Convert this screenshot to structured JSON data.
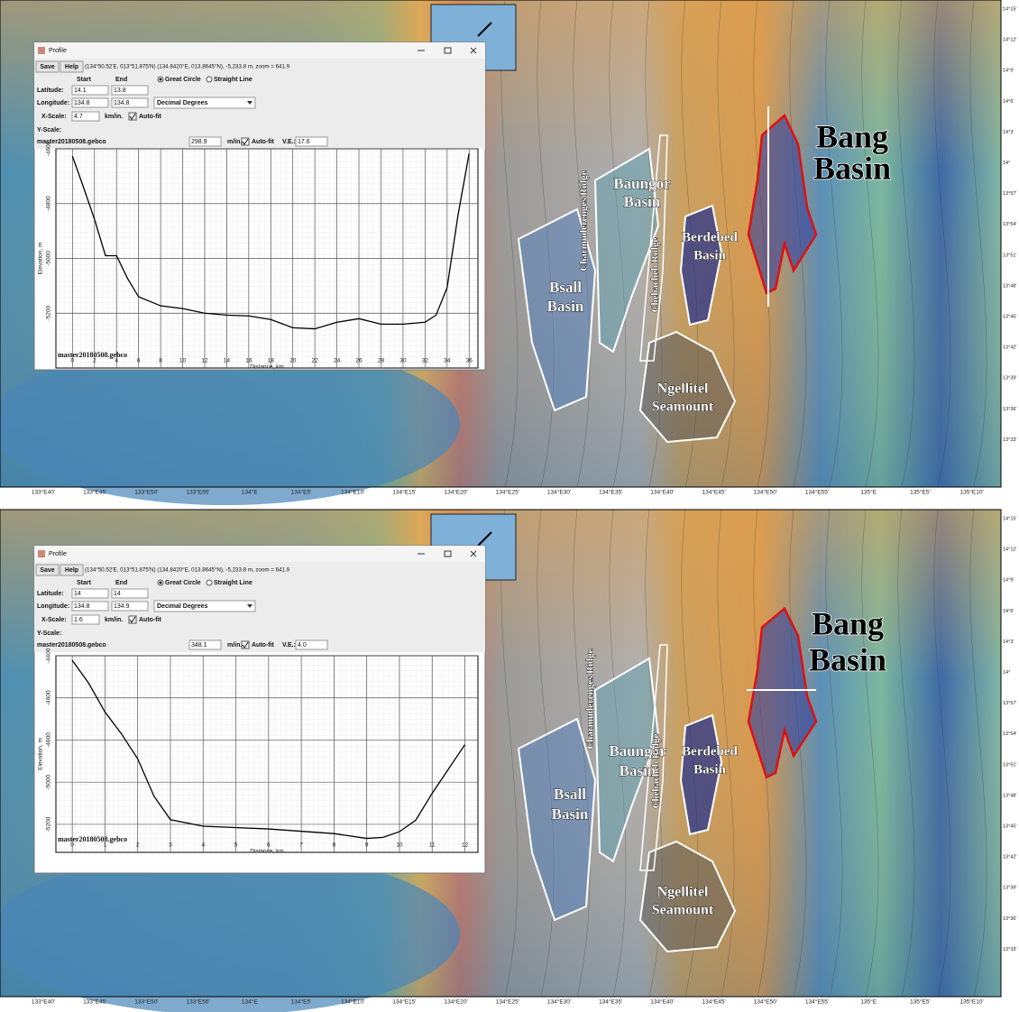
{
  "windows": [
    {
      "title": "Profile",
      "buttons": [
        "Save",
        "Help"
      ],
      "coords": "(134°50.52'E, 013°51.875'N) (134.8420°E, 013.8645°N), -5,233.8 m, zoom = 641.9",
      "start": "Start",
      "end": "End",
      "great_circle": "Great Circle",
      "straight_line": "Straight Line",
      "latitude": "Latitude:",
      "lat_start": "14.1",
      "lat_end": "13.8",
      "longitude": "Longitude:",
      "lon_start": "134.8",
      "lon_end": "134.8",
      "units": "Decimal Degrees",
      "x_scale": "X-Scale:",
      "x_scale_value": "4.7",
      "km_in": "km/in.",
      "auto_fit": "Auto-fit",
      "y_scale": "Y-Scale:",
      "dataset": "master20180508.gebco",
      "y_scale_value": "298.9",
      "m_in": "m/in.",
      "auto_fit_2": "Auto-fit",
      "ve": "V.E.:",
      "ve_value": "17.6"
    },
    {
      "title": "Profile",
      "buttons": [
        "Save",
        "Help"
      ],
      "coords": "(134°50.52'E, 013°51.875'N) (134.8420°E, 013.8645°N), -5,233.8 m, zoom = 641.9",
      "start": "Start",
      "end": "End",
      "great_circle": "Great Circle",
      "straight_line": "Straight Line",
      "latitude": "Latitude:",
      "lat_start": "14",
      "lat_end": "14",
      "longitude": "Longitude:",
      "lon_start": "134.8",
      "lon_end": "134.9",
      "units": "Decimal Degrees",
      "x_scale": "X-Scale:",
      "x_scale_value": "1.6",
      "km_in": "km/in.",
      "auto_fit": "Auto-fit",
      "y_scale": "Y-Scale:",
      "dataset": "master20180508.gebco",
      "y_scale_value": "348.1",
      "m_in": "m/in.",
      "auto_fit_2": "Auto-fit",
      "ve": "V.E.:",
      "ve_value": "4.0"
    }
  ],
  "chart_data": [
    {
      "type": "line",
      "x_label": "Distance, km",
      "y_label": "Elevation, m",
      "watermark": "master20180508.gebco",
      "color": "#000000",
      "grid": true,
      "x": [
        0,
        1,
        2,
        3,
        4,
        5,
        6,
        8,
        10,
        12,
        14,
        16,
        18,
        20,
        22,
        24,
        26,
        28,
        30,
        32,
        33,
        34,
        35,
        36
      ],
      "values": [
        -4627,
        -4740,
        -4857,
        -4990,
        -4990,
        -5073,
        -5140,
        -5173,
        -5183,
        -5200,
        -5207,
        -5210,
        -5223,
        -5253,
        -5257,
        -5233,
        -5220,
        -5240,
        -5240,
        -5233,
        -5207,
        -5107,
        -4840,
        -4617
      ],
      "xlim": [
        -1.5,
        36.8
      ],
      "ylim": [
        -5400,
        -4600
      ],
      "xticks": [
        0,
        2,
        4,
        6,
        8,
        10,
        12,
        14,
        16,
        18,
        20,
        22,
        24,
        26,
        28,
        30,
        32,
        34,
        36
      ],
      "yticks": [
        -4600,
        -4800,
        -5000,
        -5200
      ]
    },
    {
      "type": "line",
      "x_label": "Distance, km",
      "y_label": "Elevation, m",
      "watermark": "master20180508.gebco",
      "color": "#000000",
      "grid": true,
      "x": [
        0,
        0.5,
        1,
        1.5,
        2,
        2.5,
        3,
        4,
        6,
        8,
        9,
        9.5,
        10,
        10.5,
        11,
        12
      ],
      "values": [
        -4422,
        -4530,
        -4667,
        -4770,
        -4889,
        -5067,
        -5178,
        -5209,
        -5222,
        -5244,
        -5267,
        -5262,
        -5235,
        -5180,
        -5053,
        -4822
      ],
      "xlim": [
        -0.5,
        12.4
      ],
      "ylim": [
        -5333,
        -4400
      ],
      "xticks": [
        0,
        1,
        2,
        3,
        4,
        5,
        6,
        7,
        8,
        9,
        10,
        11,
        12
      ],
      "yticks": [
        -4400,
        -4600,
        -4800,
        -5000,
        -5200
      ]
    }
  ],
  "map": {
    "labels": [
      [
        "Bang",
        "Basin"
      ],
      [
        "Baungor",
        "Basin"
      ],
      [
        "Bsall",
        "Basin"
      ],
      [
        "Berdebed",
        "Basin"
      ],
      [
        "Ngellitel",
        "Seamount"
      ],
      [
        "Charmuderenges Ridge"
      ],
      [
        "Chebacheb Ridge"
      ]
    ],
    "lon_labels": [
      "133°E40'",
      "133°E45'",
      "133°E50'",
      "133°E55'",
      "134°E",
      "134°E5'",
      "134°E10'",
      "134°E15'",
      "134°E20'",
      "134°E25'",
      "134°E30'",
      "134°E35'",
      "134°E40'",
      "134°E45'",
      "134°E50'",
      "134°E55'",
      "135°E",
      "135°E5'",
      "135°E10'"
    ],
    "lat_labels": [
      "14°15'",
      "14°12'",
      "14°9'",
      "14°6'",
      "14°3'",
      "14°",
      "13°57'",
      "13°54'",
      "13°51'",
      "13°48'",
      "13°45'",
      "13°42'",
      "13°39'",
      "13°36'",
      "13°33'"
    ]
  }
}
